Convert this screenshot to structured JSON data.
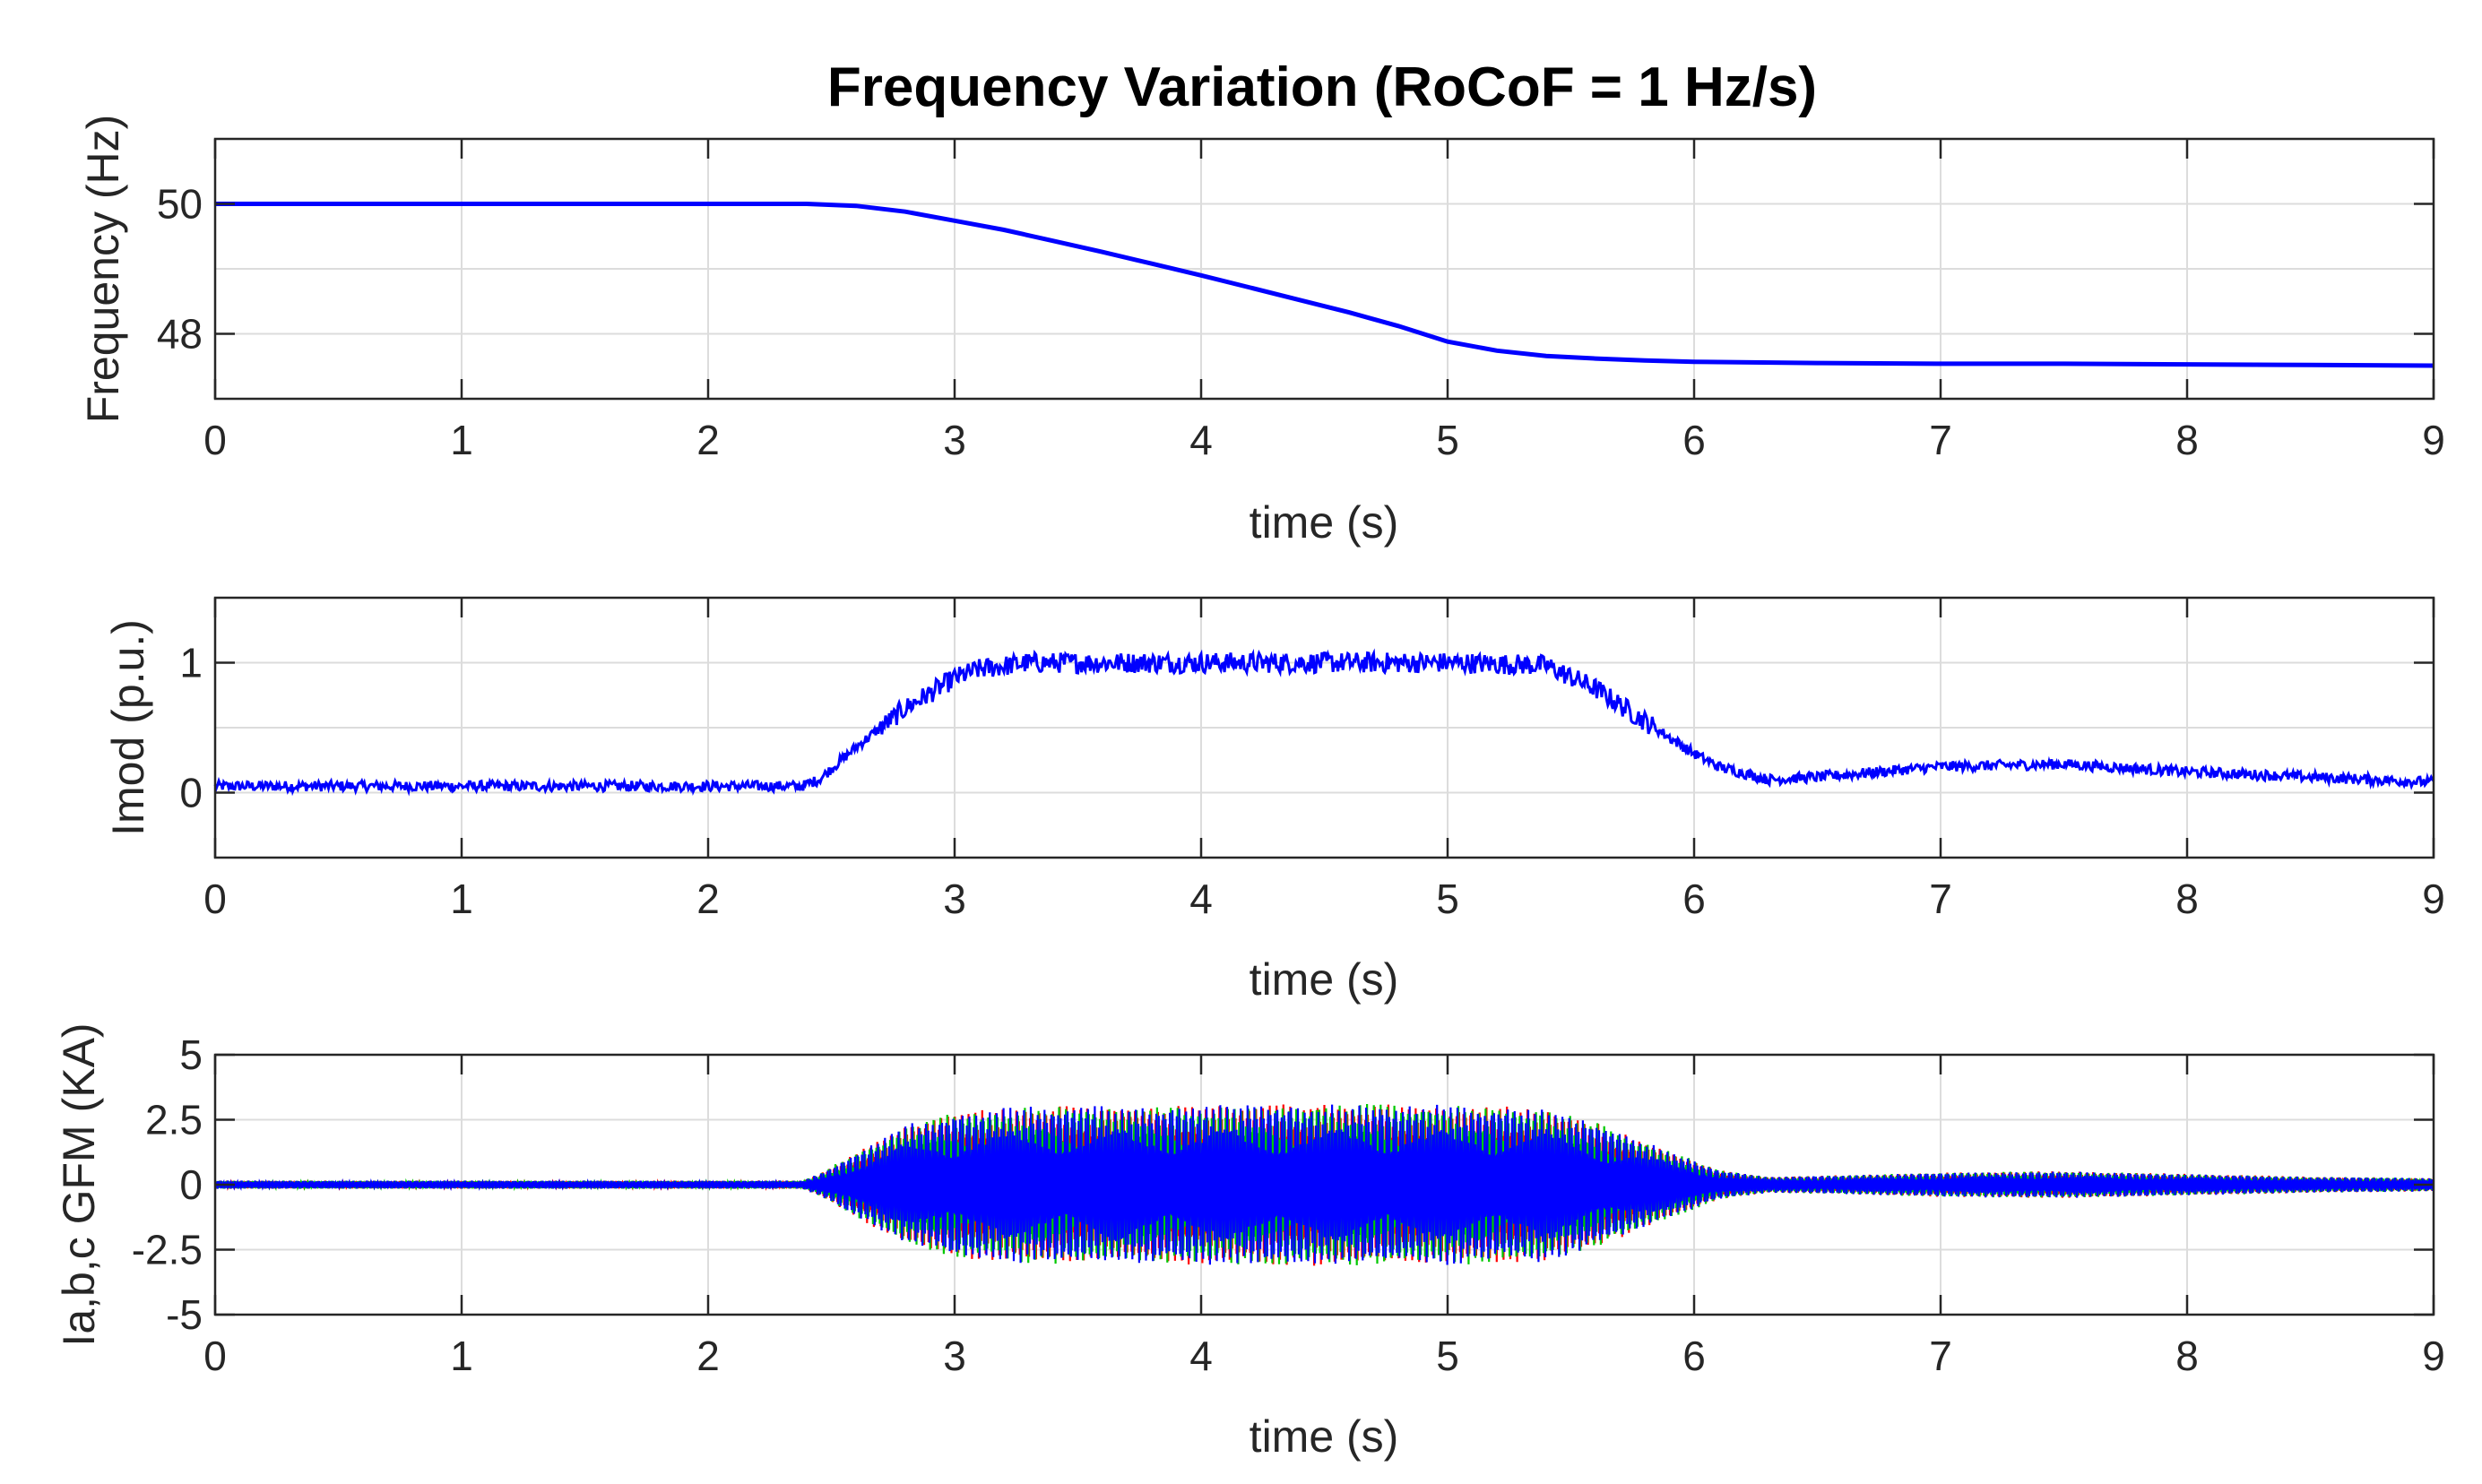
{
  "figure_title": "Frequency Variation (RoCoF = 1 Hz/s)",
  "colors": {
    "blue": "#0000ff",
    "red": "#ff0000",
    "green": "#00c800",
    "grid": "#dcdcdc",
    "axis": "#262626"
  },
  "chart_data": [
    {
      "type": "line",
      "title": "Frequency Variation (RoCoF = 1 Hz/s)",
      "xlabel": "time (s)",
      "ylabel": "Frequency (Hz)",
      "xlim": [
        0,
        9
      ],
      "ylim": [
        47,
        51
      ],
      "xticks": [
        0,
        1,
        2,
        3,
        4,
        5,
        6,
        7,
        8,
        9
      ],
      "yticks": [
        48,
        50
      ],
      "xticklabels": [
        "0",
        "1",
        "2",
        "3",
        "4",
        "5",
        "6",
        "7",
        "8",
        "9"
      ],
      "yticklabels": [
        "48",
        "50"
      ],
      "grid": true,
      "series": [
        {
          "name": "Frequency",
          "color": "#0000ff",
          "x": [
            0,
            2.4,
            2.6,
            2.8,
            3.0,
            3.2,
            3.4,
            3.6,
            3.8,
            4.0,
            4.2,
            4.4,
            4.6,
            4.8,
            4.9,
            5.0,
            5.2,
            5.4,
            5.6,
            5.8,
            6.0,
            6.5,
            7.0,
            7.5,
            8.0,
            8.5,
            9.0
          ],
          "y": [
            50,
            50,
            49.97,
            49.88,
            49.74,
            49.6,
            49.43,
            49.26,
            49.08,
            48.9,
            48.71,
            48.52,
            48.33,
            48.12,
            48.0,
            47.88,
            47.74,
            47.66,
            47.62,
            47.59,
            47.57,
            47.55,
            47.54,
            47.54,
            47.53,
            47.52,
            47.51
          ]
        }
      ]
    },
    {
      "type": "line",
      "title": "",
      "xlabel": "time (s)",
      "ylabel": "Imod (p.u.)",
      "xlim": [
        0,
        9
      ],
      "ylim": [
        -0.5,
        1.5
      ],
      "xticks": [
        0,
        1,
        2,
        3,
        4,
        5,
        6,
        7,
        8,
        9
      ],
      "yticks": [
        0,
        1
      ],
      "xticklabels": [
        "0",
        "1",
        "2",
        "3",
        "4",
        "5",
        "6",
        "7",
        "8",
        "9"
      ],
      "yticklabels": [
        "0",
        "1"
      ],
      "grid": true,
      "series": [
        {
          "name": "Imod",
          "color": "#0000ff",
          "x": [
            0,
            2.38,
            2.45,
            2.6,
            2.8,
            3.0,
            3.1,
            3.3,
            3.5,
            4.0,
            4.5,
            5.0,
            5.4,
            5.6,
            5.8,
            6.0,
            6.1,
            6.3,
            6.5,
            7.0,
            7.5,
            8.0,
            8.5,
            9.0
          ],
          "y": [
            0.05,
            0.05,
            0.1,
            0.35,
            0.65,
            0.88,
            0.95,
            1.0,
            1.0,
            1.0,
            1.0,
            1.0,
            0.98,
            0.8,
            0.55,
            0.3,
            0.2,
            0.1,
            0.12,
            0.2,
            0.22,
            0.16,
            0.12,
            0.08
          ],
          "noise_amplitude": 0.05
        }
      ]
    },
    {
      "type": "line",
      "title": "",
      "xlabel": "time (s)",
      "ylabel": "Ia,b,c GFM (KA)",
      "xlim": [
        0,
        9
      ],
      "ylim": [
        -5,
        5
      ],
      "xticks": [
        0,
        1,
        2,
        3,
        4,
        5,
        6,
        7,
        8,
        9
      ],
      "yticks": [
        -5,
        -2.5,
        0,
        2.5,
        5
      ],
      "xticklabels": [
        "0",
        "1",
        "2",
        "3",
        "4",
        "5",
        "6",
        "7",
        "8",
        "9"
      ],
      "yticklabels": [
        "-5",
        "-2.5",
        "0",
        "2.5",
        "5"
      ],
      "grid": true,
      "series": [
        {
          "name": "Ia",
          "color": "#ff0000"
        },
        {
          "name": "Ib",
          "color": "#00c800"
        },
        {
          "name": "Ic",
          "color": "#0000ff"
        }
      ],
      "envelope": {
        "description": "amplitude of three-phase oscillating current",
        "x": [
          0,
          2.38,
          2.45,
          2.6,
          2.8,
          3.0,
          3.3,
          4.0,
          4.5,
          5.0,
          5.4,
          5.6,
          5.8,
          6.0,
          6.1,
          6.3,
          6.6,
          7.0,
          7.5,
          8.0,
          8.5,
          9.0
        ],
        "amplitude": [
          0.15,
          0.15,
          0.4,
          1.2,
          2.2,
          2.7,
          2.9,
          2.95,
          3.0,
          2.95,
          2.85,
          2.3,
          1.6,
          0.9,
          0.55,
          0.3,
          0.35,
          0.45,
          0.5,
          0.4,
          0.3,
          0.25
        ]
      }
    }
  ]
}
